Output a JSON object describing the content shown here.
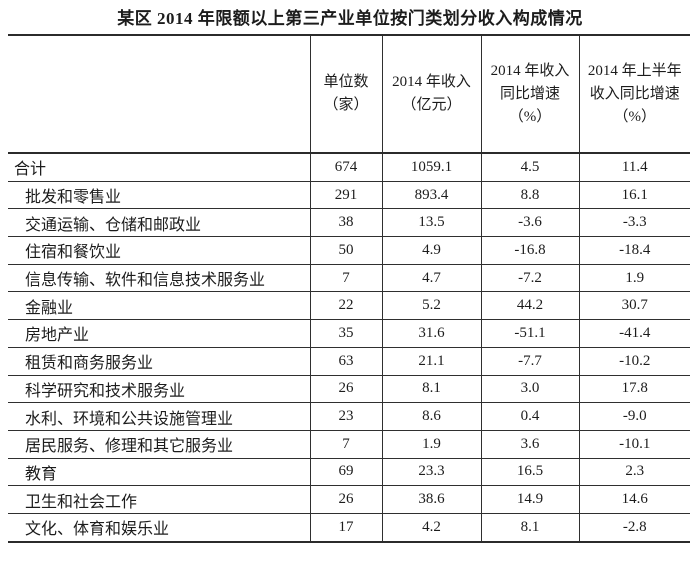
{
  "title": "某区 2014 年限额以上第三产业单位按门类划分收入构成情况",
  "chart_data": {
    "type": "table",
    "title": "某区 2014 年限额以上第三产业单位按门类划分收入构成情况",
    "columns": [
      "",
      "单位数（家）",
      "2014 年收入（亿元）",
      "2014 年收入同比增速（%）",
      "2014 年上半年收入同比增速（%）"
    ],
    "rows": [
      [
        "合计",
        "674",
        "1059.1",
        "4.5",
        "11.4"
      ],
      [
        "批发和零售业",
        "291",
        "893.4",
        "8.8",
        "16.1"
      ],
      [
        "交通运输、仓储和邮政业",
        "38",
        "13.5",
        "-3.6",
        "-3.3"
      ],
      [
        "住宿和餐饮业",
        "50",
        "4.9",
        "-16.8",
        "-18.4"
      ],
      [
        "信息传输、软件和信息技术服务业",
        "7",
        "4.7",
        "-7.2",
        "1.9"
      ],
      [
        "金融业",
        "22",
        "5.2",
        "44.2",
        "30.7"
      ],
      [
        "房地产业",
        "35",
        "31.6",
        "-51.1",
        "-41.4"
      ],
      [
        "租赁和商务服务业",
        "63",
        "21.1",
        "-7.7",
        "-10.2"
      ],
      [
        "科学研究和技术服务业",
        "26",
        "8.1",
        "3.0",
        "17.8"
      ],
      [
        "水利、环境和公共设施管理业",
        "23",
        "8.6",
        "0.4",
        "-9.0"
      ],
      [
        "居民服务、修理和其它服务业",
        "7",
        "1.9",
        "3.6",
        "-10.1"
      ],
      [
        "教育",
        "69",
        "23.3",
        "16.5",
        "2.3"
      ],
      [
        "卫生和社会工作",
        "26",
        "38.6",
        "14.9",
        "14.6"
      ],
      [
        "文化、体育和娱乐业",
        "17",
        "4.2",
        "8.1",
        "-2.8"
      ]
    ]
  }
}
